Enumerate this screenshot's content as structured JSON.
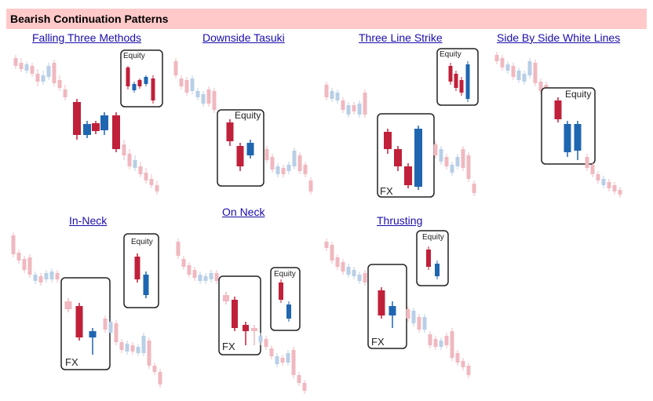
{
  "header": {
    "title": "Bearish Continuation Patterns"
  },
  "patterns": [
    {
      "id": "falling-three-methods",
      "title": "Falling Three Methods"
    },
    {
      "id": "downside-tasuki",
      "title": "Downside Tasuki"
    },
    {
      "id": "three-line-strike",
      "title": "Three Line Strike"
    },
    {
      "id": "side-by-side-white-lines",
      "title": "Side By Side White Lines"
    },
    {
      "id": "in-neck",
      "title": "In-Neck"
    },
    {
      "id": "on-neck",
      "title": "On Neck "
    },
    {
      "id": "thrusting",
      "title": "Thrusting"
    }
  ],
  "labels": {
    "equity": "Equity",
    "fx": "FX"
  },
  "colors": {
    "bear": "#c0203a",
    "bull": "#1f66b0",
    "bear_faded": "#f0b8c0",
    "bull_faded": "#b8cfe6",
    "header_bg": "#ffc9c9",
    "link": "#1a0dab"
  }
}
